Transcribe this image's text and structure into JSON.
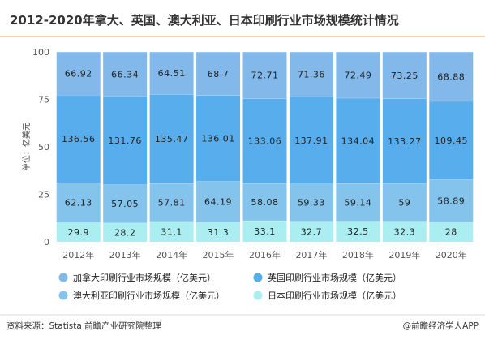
{
  "chart_data": {
    "type": "bar",
    "stacked": true,
    "normalized": true,
    "title": "2012-2020年拿大、英国、澳大利亚、日本印刷行业市场规模统计情况",
    "ylabel": "单位：亿美元",
    "xlabel": "",
    "ylim": [
      0,
      100
    ],
    "yticks": [
      "0",
      "25",
      "50",
      "75",
      "100"
    ],
    "categories": [
      "2012年",
      "2013年",
      "2014年",
      "2015年",
      "2016年",
      "2017年",
      "2018年",
      "2019年",
      "2020年"
    ],
    "series": [
      {
        "name": "日本印刷行业市场规模（亿美元）",
        "color": "#aaeef2",
        "values": [
          29.9,
          28.2,
          31.1,
          31.3,
          33.1,
          32.7,
          32.5,
          32.3,
          28
        ],
        "labels": [
          "29.9",
          "28.2",
          "31.1",
          "31.3",
          "33.1",
          "32.7",
          "32.5",
          "32.3",
          "28"
        ]
      },
      {
        "name": "澳大利亚印刷行业市场规模（亿美元）",
        "color": "#84c3eb",
        "values": [
          62.13,
          57.05,
          57.81,
          64.19,
          58.08,
          59.33,
          59.14,
          59,
          58.89
        ],
        "labels": [
          "62.13",
          "57.05",
          "57.81",
          "64.19",
          "58.08",
          "59.33",
          "59.14",
          "59",
          "58.89"
        ]
      },
      {
        "name": "英国印刷行业市场规模（亿美元）",
        "color": "#58aeed",
        "values": [
          136.56,
          131.76,
          135.47,
          136.01,
          133.06,
          137.91,
          134.04,
          133.27,
          109.45
        ],
        "labels": [
          "136.56",
          "131.76",
          "135.47",
          "136.01",
          "133.06",
          "137.91",
          "134.04",
          "133.27",
          "109.45"
        ]
      },
      {
        "name": "加拿大印刷行业市场规模（亿美元）",
        "color": "#82b8ea",
        "values": [
          66.92,
          66.34,
          64.51,
          68.7,
          72.71,
          71.36,
          72.49,
          73.25,
          68.88
        ],
        "labels": [
          "66.92",
          "66.34",
          "64.51",
          "68.7",
          "72.71",
          "71.36",
          "72.49",
          "73.25",
          "68.88"
        ]
      }
    ],
    "legend": {
      "placement": "bottom",
      "order": [
        "加拿大印刷行业市场规模（亿美元）",
        "英国印刷行业市场规模（亿美元）",
        "澳大利亚印刷行业市场规模（亿美元）",
        "日本印刷行业市场规模（亿美元）"
      ]
    },
    "grid": false
  },
  "footer": {
    "source": "资料来源：Statista  前瞻产业研究院整理",
    "brand": "@前瞻经济学人APP"
  },
  "colors": {
    "title": "#333333",
    "separator": "#f0a030",
    "text": "#222222",
    "axis": "#555555"
  }
}
